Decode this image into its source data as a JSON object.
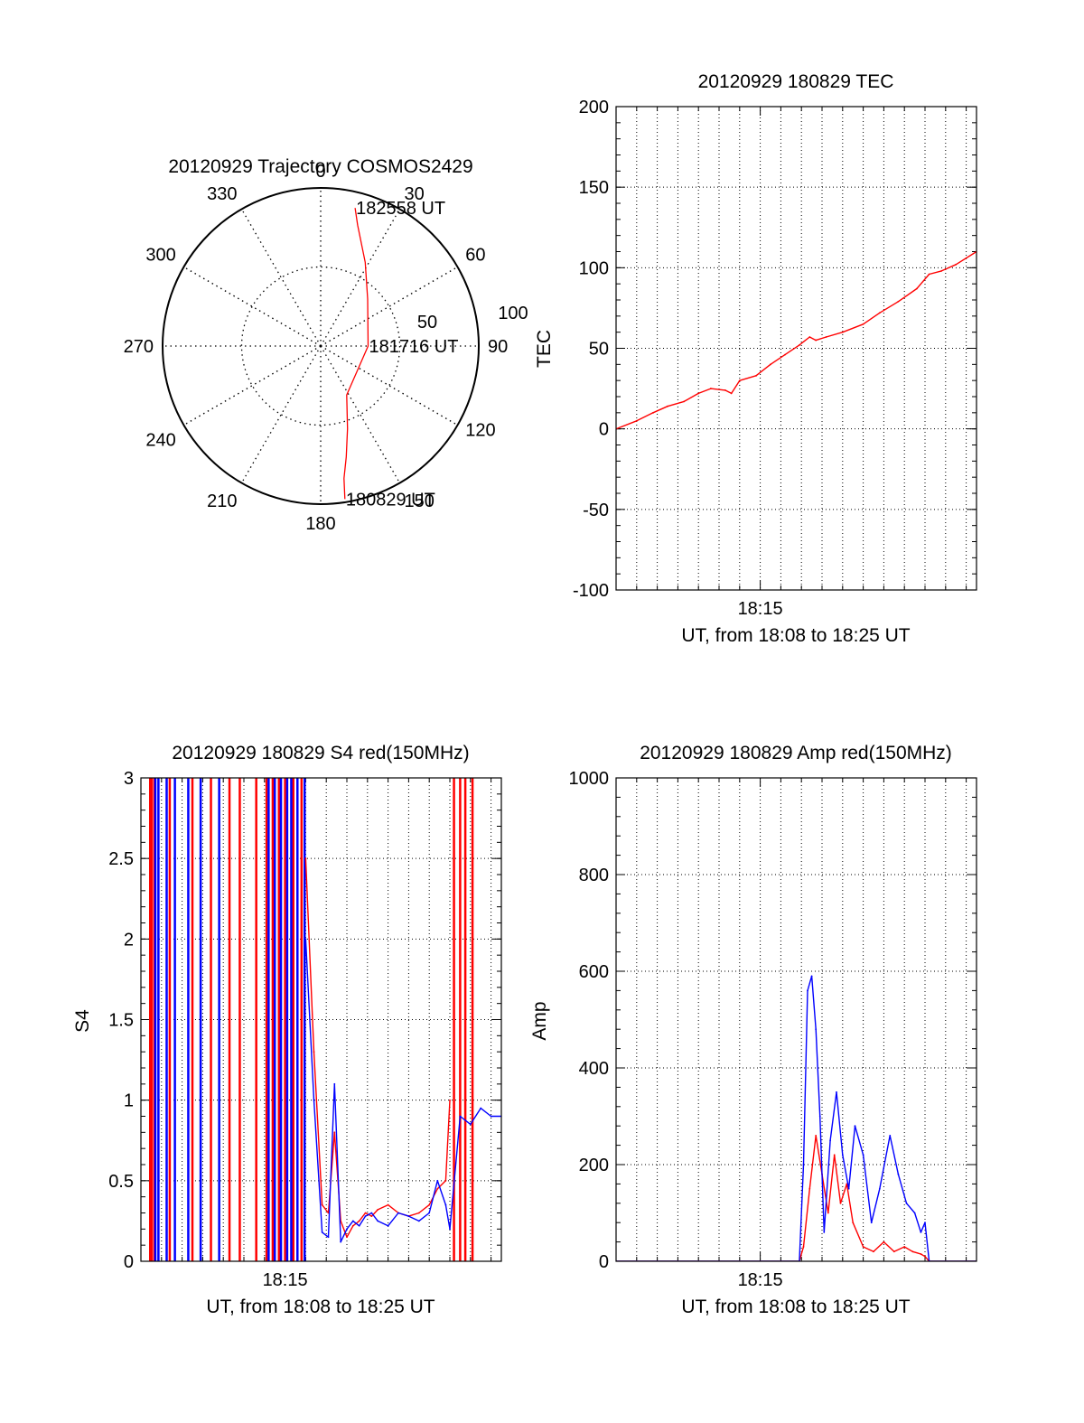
{
  "chart_data": [
    {
      "type": "scatter",
      "kind": "polar-trajectory",
      "title": "20120929 Trajectory COSMOS2429",
      "azimuth_labels": [
        "0",
        "30",
        "60",
        "90",
        "120",
        "150",
        "180",
        "210",
        "240",
        "270",
        "300",
        "330"
      ],
      "radial_labels": [
        "50",
        "100"
      ],
      "r_max": 100,
      "series": [
        {
          "color": "#ff0000",
          "azimuth_deg": [
            171,
            170,
            167,
            162,
            152,
            90,
            45,
            28,
            17,
            14
          ],
          "zenith": [
            98,
            85,
            72,
            55,
            35,
            30,
            42,
            60,
            80,
            90
          ]
        }
      ],
      "annotations": [
        {
          "text": "182558 UT",
          "azimuth_deg": 14,
          "zenith": 90
        },
        {
          "text": "181716 UT",
          "azimuth_deg": 90,
          "zenith": 30
        },
        {
          "text": "180829 UT",
          "azimuth_deg": 171,
          "zenith": 98
        }
      ]
    },
    {
      "type": "line",
      "title": "20120929 180829 TEC",
      "xlabel": "UT, from 18:08 to 18:25 UT",
      "ylabel": "TEC",
      "xlim": [
        0,
        17.5
      ],
      "ylim": [
        -100,
        200
      ],
      "yticks": [
        -100,
        -50,
        0,
        50,
        100,
        150,
        200
      ],
      "xtick_labels": [
        {
          "x": 7,
          "label": "18:15"
        }
      ],
      "grid": true,
      "series": [
        {
          "color": "#ff0000",
          "x": [
            0.0,
            1.0,
            1.8,
            2.5,
            3.3,
            4.0,
            4.6,
            5.3,
            5.6,
            6.0,
            6.8,
            7.5,
            8.2,
            8.9,
            9.4,
            9.7,
            10.2,
            11.0,
            12.0,
            12.8,
            13.7,
            14.6,
            15.2,
            15.8,
            16.5,
            17.5
          ],
          "y": [
            0,
            5,
            10,
            14,
            17,
            22,
            25,
            24,
            22,
            30,
            33,
            40,
            46,
            52,
            57,
            55,
            57,
            60,
            65,
            72,
            79,
            87,
            96,
            98,
            102,
            110
          ]
        }
      ]
    },
    {
      "type": "line",
      "title": "20120929 180829 S4 red(150MHz)",
      "xlabel": "UT, from 18:08 to 18:25 UT",
      "ylabel": "S4",
      "xlim": [
        0,
        17.5
      ],
      "ylim": [
        0,
        3
      ],
      "yticks": [
        0,
        0.5,
        1,
        1.5,
        2,
        2.5,
        3
      ],
      "ytick_labels": [
        "0",
        "0.5",
        "1",
        "1.5",
        "2",
        "2.5",
        "3"
      ],
      "xtick_labels": [
        {
          "x": 7,
          "label": "18:15"
        }
      ],
      "grid": true,
      "vertical_spikes": {
        "red": [
          0.45,
          0.52,
          0.65,
          1.4,
          2.5,
          3.4,
          4.3,
          4.8,
          5.6,
          6.1,
          6.4,
          6.7,
          7.0,
          7.4,
          7.8,
          15.2,
          15.5,
          15.75,
          16.1
        ],
        "blue": [
          0.7,
          0.85,
          1.25,
          1.65,
          2.3,
          2.9,
          3.8,
          6.2,
          6.5,
          6.8,
          7.1,
          7.3,
          7.6,
          7.95
        ]
      },
      "series": [
        {
          "name": "red",
          "color": "#ff0000",
          "x": [
            8.0,
            8.4,
            8.8,
            9.1,
            9.4,
            9.7,
            10.0,
            10.3,
            10.6,
            10.9,
            11.2,
            11.5,
            12.0,
            12.5,
            13.0,
            13.5,
            14.0,
            14.4,
            14.8,
            15.0
          ],
          "y": [
            2.5,
            1.3,
            0.35,
            0.3,
            0.8,
            0.25,
            0.15,
            0.22,
            0.25,
            0.3,
            0.28,
            0.32,
            0.35,
            0.3,
            0.28,
            0.3,
            0.35,
            0.45,
            0.5,
            1.0
          ]
        },
        {
          "name": "blue",
          "color": "#0000ff",
          "x": [
            8.0,
            8.4,
            8.8,
            9.1,
            9.4,
            9.7,
            10.0,
            10.3,
            10.6,
            10.9,
            11.2,
            11.5,
            12.0,
            12.5,
            13.0,
            13.5,
            14.0,
            14.4,
            14.8,
            15.0,
            15.5,
            16.0,
            16.5,
            17.0,
            17.5
          ],
          "y": [
            2.0,
            1.0,
            0.18,
            0.15,
            1.1,
            0.12,
            0.2,
            0.25,
            0.22,
            0.28,
            0.3,
            0.25,
            0.22,
            0.3,
            0.28,
            0.25,
            0.3,
            0.5,
            0.35,
            0.2,
            0.9,
            0.85,
            0.95,
            0.9,
            0.9
          ]
        }
      ]
    },
    {
      "type": "line",
      "title": "20120929 180829 Amp red(150MHz)",
      "xlabel": "UT, from 18:08 to 18:25 UT",
      "ylabel": "Amp",
      "xlim": [
        0,
        17.5
      ],
      "ylim": [
        0,
        1000
      ],
      "yticks": [
        0,
        200,
        400,
        600,
        800,
        1000
      ],
      "xtick_labels": [
        {
          "x": 7,
          "label": "18:15"
        }
      ],
      "grid": true,
      "series": [
        {
          "name": "red",
          "color": "#ff0000",
          "x": [
            0,
            8.9,
            9.1,
            9.4,
            9.7,
            10.0,
            10.3,
            10.6,
            10.9,
            11.2,
            11.5,
            12.0,
            12.5,
            13.0,
            13.5,
            14.0,
            14.4,
            14.8,
            15.0,
            15.2,
            17.5
          ],
          "y": [
            0,
            0,
            30,
            150,
            260,
            180,
            100,
            220,
            120,
            160,
            80,
            30,
            20,
            40,
            20,
            30,
            20,
            15,
            10,
            0,
            0
          ]
        },
        {
          "name": "blue",
          "color": "#0000ff",
          "x": [
            0,
            8.9,
            9.1,
            9.3,
            9.5,
            9.7,
            9.9,
            10.1,
            10.4,
            10.7,
            11.0,
            11.3,
            11.6,
            12.0,
            12.4,
            12.8,
            13.3,
            13.7,
            14.1,
            14.5,
            14.8,
            15.0,
            15.2,
            17.5
          ],
          "y": [
            0,
            0,
            200,
            560,
            590,
            480,
            300,
            60,
            250,
            350,
            220,
            150,
            280,
            220,
            80,
            150,
            260,
            180,
            120,
            100,
            60,
            80,
            0,
            0
          ]
        }
      ]
    }
  ]
}
